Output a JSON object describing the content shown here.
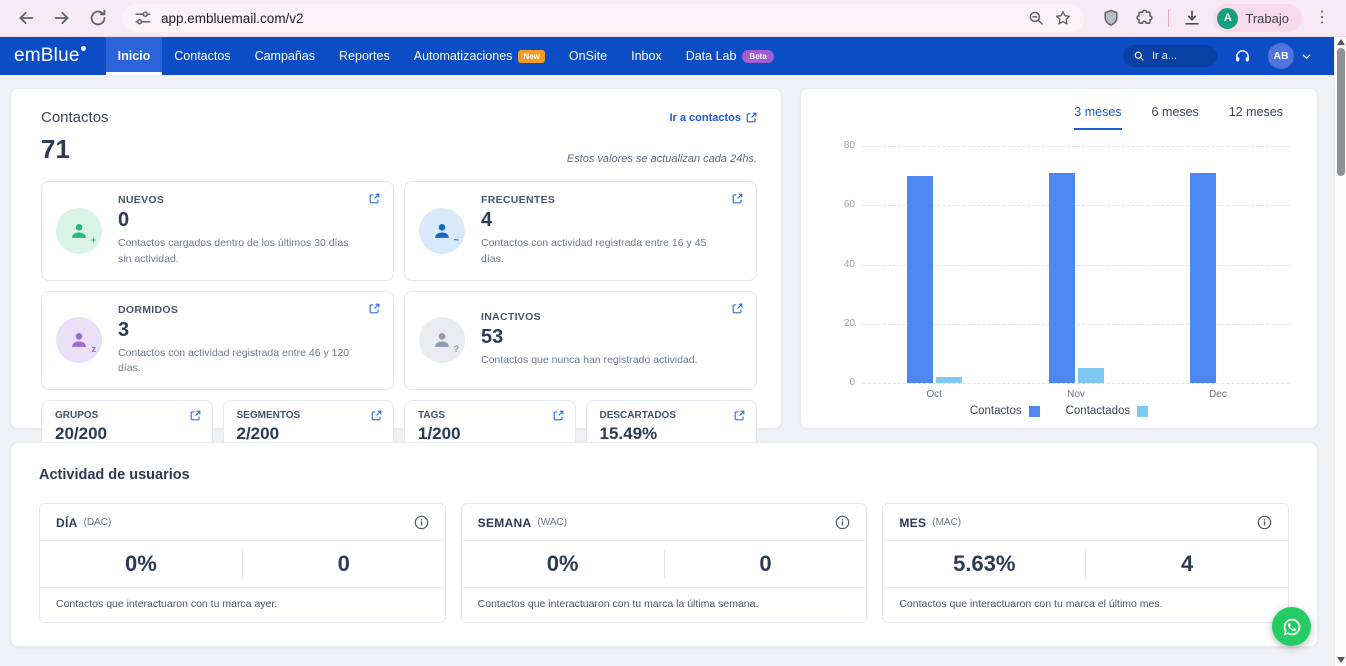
{
  "colors": {
    "nav_blue": "#0C4DC6",
    "nav_active_blue": "#2B63D9",
    "accent_blue": "#1C5BDB",
    "bar_contactos": "#4D87F1",
    "bar_contactados": "#7EC8F2",
    "badge_new_orange": "#F59B22",
    "badge_beta_purple": "#A45BD6",
    "whatsapp_green": "#25CC64"
  },
  "browser": {
    "url": "app.embluemail.com/v2",
    "profile": {
      "initial": "A",
      "label": "Trabajo"
    }
  },
  "nav": {
    "logo": "emBlue",
    "items": [
      {
        "label": "Inicio",
        "active": true
      },
      {
        "label": "Contactos"
      },
      {
        "label": "Campañas"
      },
      {
        "label": "Reportes"
      },
      {
        "label": "Automatizaciones",
        "badge": "New"
      },
      {
        "label": "OnSite"
      },
      {
        "label": "Inbox"
      },
      {
        "label": "Data Lab",
        "badge": "Beta"
      }
    ],
    "search_placeholder": "Ir a...",
    "avatar_initials": "AB"
  },
  "contacts_panel": {
    "title": "Contactos",
    "total": "71",
    "link_label": "Ir a contactos",
    "update_note": "Estos valores se actualizan cada 24hs.",
    "cards": [
      {
        "label": "NUEVOS",
        "value": "0",
        "desc": "Contactos cargados dentro de los últimos 30 días sin actividad.",
        "icon": "user-plus-icon",
        "badge_glyph": "+",
        "icon_bg": "#D9F3E7",
        "icon_fg": "#27B97D"
      },
      {
        "label": "FRECUENTES",
        "value": "4",
        "desc": "Contactos con actividad registrada entre 16 y 45 días.",
        "icon": "user-activity-icon",
        "badge_glyph": "~",
        "icon_bg": "#D8E9F9",
        "icon_fg": "#1668C4"
      },
      {
        "label": "DORMIDOS",
        "value": "3",
        "desc": "Contactos con actividad registrada entre 46 y 120 días.",
        "icon": "user-sleep-icon",
        "badge_glyph": "z",
        "icon_bg": "#EBDEF7",
        "icon_fg": "#9A6CCB"
      },
      {
        "label": "INACTIVOS",
        "value": "53",
        "desc": "Contactos que nunca han registrado actividad.",
        "icon": "user-question-icon",
        "badge_glyph": "?",
        "icon_bg": "#E9EBF1",
        "icon_fg": "#8D98AE"
      }
    ],
    "mini_cards": [
      {
        "label": "GRUPOS",
        "value": "20/200"
      },
      {
        "label": "SEGMENTOS",
        "value": "2/200"
      },
      {
        "label": "TAGS",
        "value": "1/200"
      },
      {
        "label": "DESCARTADOS",
        "value": "15.49%"
      }
    ]
  },
  "chart_panel": {
    "tabs": [
      {
        "label": "3 meses",
        "active": true
      },
      {
        "label": "6 meses"
      },
      {
        "label": "12 meses"
      }
    ]
  },
  "chart_data": {
    "type": "bar",
    "categories": [
      "Oct",
      "Nov",
      "Dec"
    ],
    "series": [
      {
        "name": "Contactos",
        "values": [
          70,
          71,
          71
        ],
        "color": "#4D87F1"
      },
      {
        "name": "Contactados",
        "values": [
          2,
          5,
          0
        ],
        "color": "#7EC8F2"
      }
    ],
    "title": "",
    "xlabel": "",
    "ylabel": "",
    "ylim": [
      0,
      80
    ],
    "yticks": [
      0,
      20,
      40,
      60,
      80
    ],
    "grid": true,
    "legend_position": "bottom"
  },
  "activity": {
    "title": "Actividad de usuarios",
    "cards": [
      {
        "label": "DÍA",
        "code": "(DAC)",
        "percent": "0%",
        "count": "0",
        "desc": "Contactos que interactuaron con tu marca ayer."
      },
      {
        "label": "SEMANA",
        "code": "(WAC)",
        "percent": "0%",
        "count": "0",
        "desc": "Contactos que interactuaron con tu marca la última semana."
      },
      {
        "label": "MES",
        "code": "(MAC)",
        "percent": "5.63%",
        "count": "4",
        "desc": "Contactos que interactuaron con tu marca el último mes."
      }
    ]
  }
}
